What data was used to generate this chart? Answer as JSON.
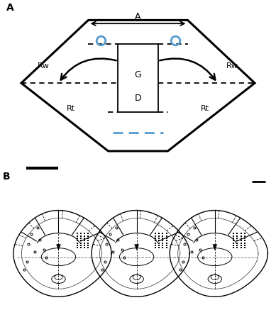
{
  "panel_A_label": "A",
  "panel_B_label": "B",
  "label_A": "A",
  "label_G": "G",
  "label_D": "D",
  "label_Rw_left": "Rw",
  "label_Rw_right": "Rw",
  "label_Rt_left": "Rt",
  "label_Rt_right": "Rt",
  "bg_color": "#ffffff",
  "line_color": "#000000",
  "blue_color": "#5599cc",
  "font_size_label": 9,
  "font_size_panel": 10,
  "lw_outer": 2.2,
  "lw_inner": 1.3,
  "lw_arrow": 1.8
}
